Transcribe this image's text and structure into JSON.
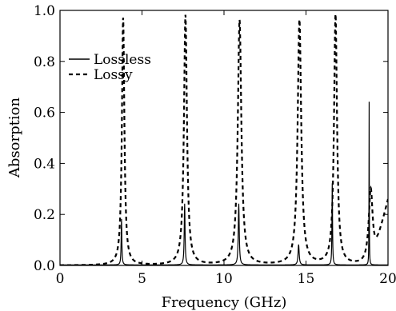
{
  "chart_data": {
    "type": "line",
    "xlabel": "Frequency (GHz)",
    "ylabel": "Absorption",
    "xlim": [
      0,
      20
    ],
    "ylim": [
      0,
      1.0
    ],
    "xticks": [
      0,
      5,
      10,
      15,
      20
    ],
    "xtick_labels": [
      "0",
      "5",
      "10",
      "15",
      "20"
    ],
    "yticks": [
      0.0,
      0.2,
      0.4,
      0.6,
      0.8,
      1.0
    ],
    "ytick_labels": [
      "0.0",
      "0.2",
      "0.4",
      "0.6",
      "0.8",
      "1.0"
    ],
    "grid": false,
    "legend_position": "top-left",
    "series": [
      {
        "name": "Lossless",
        "line_style": "solid",
        "color": "#000000",
        "peaks": [
          {
            "x": 3.75,
            "y": 0.18,
            "width": 0.05
          },
          {
            "x": 7.6,
            "y": 0.24,
            "width": 0.06
          },
          {
            "x": 10.9,
            "y": 0.24,
            "width": 0.07
          },
          {
            "x": 14.55,
            "y": 0.08,
            "width": 0.08
          },
          {
            "x": 16.6,
            "y": 0.32,
            "width": 0.04
          },
          {
            "x": 18.85,
            "y": 0.64,
            "width": 0.02
          }
        ],
        "baseline": 0.002
      },
      {
        "name": "Lossy",
        "line_style": "dashed",
        "color": "#000000",
        "peaks": [
          {
            "x": 3.85,
            "y": 0.97,
            "width": 0.18
          },
          {
            "x": 7.65,
            "y": 0.98,
            "width": 0.22
          },
          {
            "x": 10.95,
            "y": 0.96,
            "width": 0.26
          },
          {
            "x": 14.6,
            "y": 0.96,
            "width": 0.26
          },
          {
            "x": 16.8,
            "y": 0.98,
            "width": 0.22
          },
          {
            "x": 18.95,
            "y": 0.3,
            "width": 0.3
          }
        ],
        "extra_points": [
          {
            "x": 20,
            "y": 0.26
          }
        ],
        "baseline": 0.0
      }
    ]
  }
}
